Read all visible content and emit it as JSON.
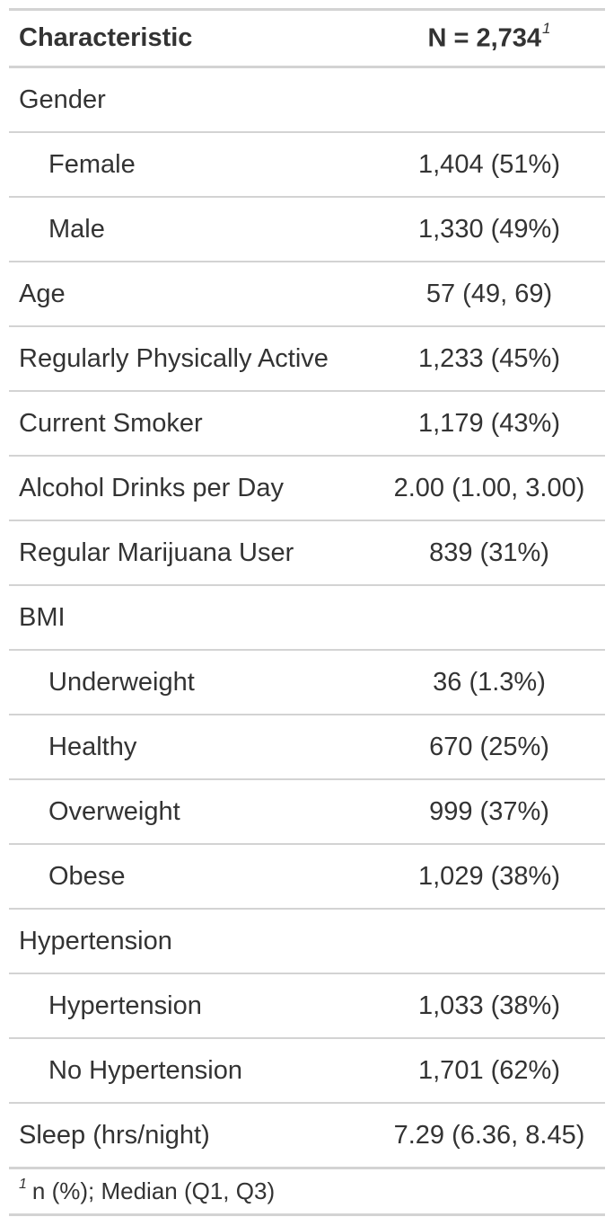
{
  "header": {
    "characteristic": "Characteristic",
    "n_label": "N = 2,734",
    "n_footnote_marker": "1"
  },
  "rows": [
    {
      "label": "Gender",
      "stat": "",
      "indent": false
    },
    {
      "label": "Female",
      "stat": "1,404 (51%)",
      "indent": true
    },
    {
      "label": "Male",
      "stat": "1,330 (49%)",
      "indent": true
    },
    {
      "label": "Age",
      "stat": "57 (49, 69)",
      "indent": false
    },
    {
      "label": "Regularly Physically Active",
      "stat": "1,233 (45%)",
      "indent": false
    },
    {
      "label": "Current Smoker",
      "stat": "1,179 (43%)",
      "indent": false
    },
    {
      "label": "Alcohol Drinks per Day",
      "stat": "2.00 (1.00, 3.00)",
      "indent": false
    },
    {
      "label": "Regular Marijuana User",
      "stat": "839 (31%)",
      "indent": false
    },
    {
      "label": "BMI",
      "stat": "",
      "indent": false
    },
    {
      "label": "Underweight",
      "stat": "36 (1.3%)",
      "indent": true
    },
    {
      "label": "Healthy",
      "stat": "670 (25%)",
      "indent": true
    },
    {
      "label": "Overweight",
      "stat": "999 (37%)",
      "indent": true
    },
    {
      "label": "Obese",
      "stat": "1,029 (38%)",
      "indent": true
    },
    {
      "label": "Hypertension",
      "stat": "",
      "indent": false
    },
    {
      "label": "Hypertension",
      "stat": "1,033 (38%)",
      "indent": true
    },
    {
      "label": "No Hypertension",
      "stat": "1,701 (62%)",
      "indent": true
    },
    {
      "label": "Sleep (hrs/night)",
      "stat": "7.29 (6.36, 8.45)",
      "indent": false
    }
  ],
  "footnote": {
    "marker": "1",
    "text": "n (%); Median (Q1, Q3)"
  }
}
